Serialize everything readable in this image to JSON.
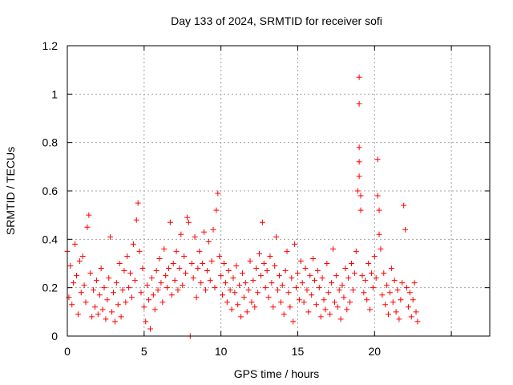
{
  "chart_data": {
    "type": "scatter",
    "title": "Day 133 of 2024, SRMTID for receiver sofi",
    "xlabel": "GPS time / hours",
    "ylabel": "SRMTID / TECUs",
    "xlim": [
      0,
      27.5
    ],
    "ylim": [
      0,
      1.2
    ],
    "x_ticks": [
      0,
      5,
      10,
      15,
      20,
      25
    ],
    "x_tick_labels": [
      "0",
      "5",
      "10",
      "15",
      "20",
      ""
    ],
    "y_ticks": [
      0,
      0.2,
      0.4,
      0.6,
      0.8,
      1,
      1.2
    ],
    "y_tick_labels": [
      "0",
      "0.2",
      "0.4",
      "0.6",
      "0.8",
      "1",
      "1.2"
    ],
    "grid": true,
    "marker": "+",
    "color": "#ff0000",
    "series": [
      {
        "name": "SRMTID",
        "points": [
          [
            0.0,
            0.35
          ],
          [
            0.1,
            0.16
          ],
          [
            0.2,
            0.29
          ],
          [
            0.3,
            0.13
          ],
          [
            0.4,
            0.22
          ],
          [
            0.5,
            0.38
          ],
          [
            0.6,
            0.25
          ],
          [
            0.7,
            0.09
          ],
          [
            0.8,
            0.31
          ],
          [
            0.9,
            0.18
          ],
          [
            1.0,
            0.33
          ],
          [
            1.1,
            0.21
          ],
          [
            1.2,
            0.14
          ],
          [
            1.3,
            0.45
          ],
          [
            1.4,
            0.5
          ],
          [
            1.5,
            0.26
          ],
          [
            1.6,
            0.08
          ],
          [
            1.7,
            0.19
          ],
          [
            1.8,
            0.12
          ],
          [
            1.9,
            0.23
          ],
          [
            2.0,
            0.09
          ],
          [
            2.1,
            0.17
          ],
          [
            2.2,
            0.28
          ],
          [
            2.3,
            0.11
          ],
          [
            2.4,
            0.2
          ],
          [
            2.5,
            0.07
          ],
          [
            2.6,
            0.15
          ],
          [
            2.7,
            0.24
          ],
          [
            2.8,
            0.41
          ],
          [
            2.9,
            0.1
          ],
          [
            3.0,
            0.18
          ],
          [
            3.1,
            0.06
          ],
          [
            3.2,
            0.22
          ],
          [
            3.3,
            0.13
          ],
          [
            3.4,
            0.3
          ],
          [
            3.5,
            0.08
          ],
          [
            3.6,
            0.19
          ],
          [
            3.7,
            0.27
          ],
          [
            3.8,
            0.14
          ],
          [
            3.9,
            0.33
          ],
          [
            4.0,
            0.2
          ],
          [
            4.1,
            0.26
          ],
          [
            4.2,
            0.16
          ],
          [
            4.3,
            0.38
          ],
          [
            4.4,
            0.23
          ],
          [
            4.5,
            0.48
          ],
          [
            4.6,
            0.55
          ],
          [
            4.7,
            0.35
          ],
          [
            4.8,
            0.18
          ],
          [
            4.9,
            0.28
          ],
          [
            5.0,
            0.12
          ],
          [
            5.1,
            0.06
          ],
          [
            5.2,
            0.21
          ],
          [
            5.3,
            0.15
          ],
          [
            5.4,
            0.03
          ],
          [
            5.5,
            0.24
          ],
          [
            5.6,
            0.17
          ],
          [
            5.7,
            0.11
          ],
          [
            5.8,
            0.27
          ],
          [
            5.9,
            0.19
          ],
          [
            6.0,
            0.32
          ],
          [
            6.1,
            0.22
          ],
          [
            6.2,
            0.14
          ],
          [
            6.3,
            0.36
          ],
          [
            6.4,
            0.25
          ],
          [
            6.5,
            0.2
          ],
          [
            6.6,
            0.28
          ],
          [
            6.7,
            0.47
          ],
          [
            6.8,
            0.17
          ],
          [
            6.9,
            0.3
          ],
          [
            7.0,
            0.23
          ],
          [
            7.1,
            0.35
          ],
          [
            7.2,
            0.19
          ],
          [
            7.3,
            0.28
          ],
          [
            7.4,
            0.42
          ],
          [
            7.5,
            0.21
          ],
          [
            7.6,
            0.33
          ],
          [
            7.7,
            0.26
          ],
          [
            7.8,
            0.49
          ],
          [
            7.9,
            0.47
          ],
          [
            8.0,
            0.0
          ],
          [
            8.1,
            0.3
          ],
          [
            8.2,
            0.24
          ],
          [
            8.3,
            0.41
          ],
          [
            8.4,
            0.16
          ],
          [
            8.5,
            0.28
          ],
          [
            8.6,
            0.35
          ],
          [
            8.7,
            0.22
          ],
          [
            8.8,
            0.3
          ],
          [
            8.9,
            0.43
          ],
          [
            9.0,
            0.19
          ],
          [
            9.1,
            0.27
          ],
          [
            9.2,
            0.39
          ],
          [
            9.3,
            0.23
          ],
          [
            9.4,
            0.31
          ],
          [
            9.5,
            0.44
          ],
          [
            9.6,
            0.2
          ],
          [
            9.7,
            0.52
          ],
          [
            9.8,
            0.59
          ],
          [
            9.9,
            0.33
          ],
          [
            10.0,
            0.25
          ],
          [
            10.1,
            0.17
          ],
          [
            10.2,
            0.3
          ],
          [
            10.3,
            0.22
          ],
          [
            10.4,
            0.14
          ],
          [
            10.5,
            0.27
          ],
          [
            10.6,
            0.19
          ],
          [
            10.7,
            0.11
          ],
          [
            10.8,
            0.24
          ],
          [
            10.9,
            0.18
          ],
          [
            11.0,
            0.29
          ],
          [
            11.1,
            0.13
          ],
          [
            11.2,
            0.21
          ],
          [
            11.3,
            0.08
          ],
          [
            11.4,
            0.26
          ],
          [
            11.5,
            0.16
          ],
          [
            11.6,
            0.22
          ],
          [
            11.7,
            0.1
          ],
          [
            11.8,
            0.19
          ],
          [
            11.9,
            0.31
          ],
          [
            12.0,
            0.14
          ],
          [
            12.1,
            0.23
          ],
          [
            12.2,
            0.12
          ],
          [
            12.3,
            0.28
          ],
          [
            12.4,
            0.18
          ],
          [
            12.5,
            0.34
          ],
          [
            12.6,
            0.25
          ],
          [
            12.7,
            0.47
          ],
          [
            12.8,
            0.3
          ],
          [
            12.9,
            0.2
          ],
          [
            13.0,
            0.27
          ],
          [
            13.1,
            0.16
          ],
          [
            13.2,
            0.33
          ],
          [
            13.3,
            0.22
          ],
          [
            13.4,
            0.12
          ],
          [
            13.5,
            0.29
          ],
          [
            13.6,
            0.41
          ],
          [
            13.7,
            0.19
          ],
          [
            13.8,
            0.25
          ],
          [
            13.9,
            0.14
          ],
          [
            14.0,
            0.21
          ],
          [
            14.1,
            0.09
          ],
          [
            14.2,
            0.27
          ],
          [
            14.3,
            0.35
          ],
          [
            14.4,
            0.18
          ],
          [
            14.5,
            0.12
          ],
          [
            14.6,
            0.24
          ],
          [
            14.7,
            0.06
          ],
          [
            14.8,
            0.38
          ],
          [
            14.9,
            0.2
          ],
          [
            15.0,
            0.26
          ],
          [
            15.1,
            0.15
          ],
          [
            15.2,
            0.31
          ],
          [
            15.3,
            0.22
          ],
          [
            15.4,
            0.14
          ],
          [
            15.5,
            0.28
          ],
          [
            15.6,
            0.19
          ],
          [
            15.7,
            0.1
          ],
          [
            15.8,
            0.25
          ],
          [
            15.9,
            0.17
          ],
          [
            16.0,
            0.32
          ],
          [
            16.1,
            0.23
          ],
          [
            16.2,
            0.13
          ],
          [
            16.3,
            0.27
          ],
          [
            16.4,
            0.2
          ],
          [
            16.5,
            0.08
          ],
          [
            16.6,
            0.24
          ],
          [
            16.7,
            0.15
          ],
          [
            16.8,
            0.11
          ],
          [
            16.9,
            0.3
          ],
          [
            17.0,
            0.18
          ],
          [
            17.1,
            0.09
          ],
          [
            17.2,
            0.22
          ],
          [
            17.3,
            0.36
          ],
          [
            17.4,
            0.14
          ],
          [
            17.5,
            0.25
          ],
          [
            17.6,
            0.12
          ],
          [
            17.7,
            0.19
          ],
          [
            17.8,
            0.07
          ],
          [
            17.9,
            0.21
          ],
          [
            18.0,
            0.16
          ],
          [
            18.1,
            0.28
          ],
          [
            18.2,
            0.11
          ],
          [
            18.3,
            0.24
          ],
          [
            18.4,
            0.14
          ],
          [
            18.5,
            0.3
          ],
          [
            18.6,
            0.19
          ],
          [
            18.7,
            0.26
          ],
          [
            18.8,
            0.35
          ],
          [
            18.9,
            0.6
          ],
          [
            19.0,
            1.07
          ],
          [
            19.0,
            0.96
          ],
          [
            19.0,
            0.78
          ],
          [
            19.0,
            0.72
          ],
          [
            19.0,
            0.66
          ],
          [
            19.1,
            0.58
          ],
          [
            19.1,
            0.52
          ],
          [
            19.2,
            0.25
          ],
          [
            19.3,
            0.18
          ],
          [
            19.4,
            0.23
          ],
          [
            19.5,
            0.15
          ],
          [
            19.6,
            0.3
          ],
          [
            19.7,
            0.11
          ],
          [
            19.8,
            0.26
          ],
          [
            19.9,
            0.2
          ],
          [
            20.0,
            0.33
          ],
          [
            20.1,
            0.24
          ],
          [
            20.2,
            0.73
          ],
          [
            20.2,
            0.58
          ],
          [
            20.3,
            0.52
          ],
          [
            20.3,
            0.42
          ],
          [
            20.4,
            0.36
          ],
          [
            20.5,
            0.17
          ],
          [
            20.6,
            0.26
          ],
          [
            20.7,
            0.13
          ],
          [
            20.8,
            0.21
          ],
          [
            20.9,
            0.09
          ],
          [
            21.0,
            0.18
          ],
          [
            21.1,
            0.28
          ],
          [
            21.2,
            0.14
          ],
          [
            21.3,
            0.23
          ],
          [
            21.4,
            0.1
          ],
          [
            21.5,
            0.19
          ],
          [
            21.6,
            0.07
          ],
          [
            21.7,
            0.15
          ],
          [
            21.8,
            0.22
          ],
          [
            21.9,
            0.54
          ],
          [
            22.0,
            0.44
          ],
          [
            22.1,
            0.2
          ],
          [
            22.2,
            0.12
          ],
          [
            22.3,
            0.18
          ],
          [
            22.4,
            0.08
          ],
          [
            22.5,
            0.15
          ],
          [
            22.6,
            0.22
          ],
          [
            22.7,
            0.1
          ],
          [
            22.8,
            0.06
          ]
        ]
      }
    ]
  }
}
